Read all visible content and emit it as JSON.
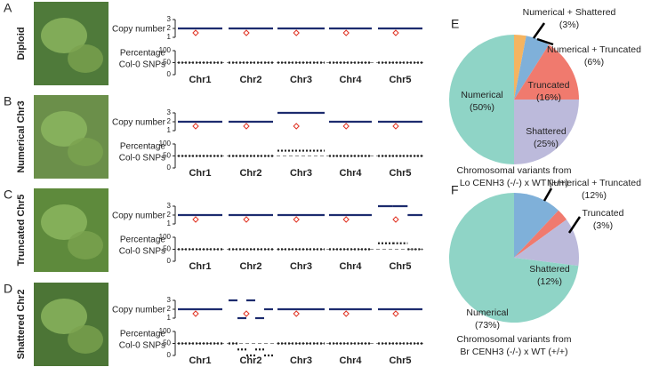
{
  "chart_data": [
    {
      "type": "pie",
      "panel": "E",
      "categories": [
        "Numerical + Shattered",
        "Numerical + Truncated",
        "Truncated",
        "Shattered",
        "Numerical"
      ],
      "values": [
        3,
        6,
        16,
        25,
        50
      ],
      "value_labels": [
        "(3%)",
        "(6%)",
        "(16%)",
        "(25%)",
        "(50%)"
      ],
      "colors": [
        "#f5b460",
        "#7fb0d9",
        "#f07a6e",
        "#bcbadb",
        "#8fd4c6"
      ],
      "caption": [
        "Chromosomal variants from",
        "Lo CENH3 (-/-) x WT (+/+)"
      ]
    },
    {
      "type": "pie",
      "panel": "F",
      "categories": [
        "Numerical + Truncated",
        "Truncated",
        "Shattered",
        "Numerical"
      ],
      "values": [
        12,
        3,
        12,
        73
      ],
      "value_labels": [
        "(12%)",
        "(3%)",
        "(12%)",
        "(73%)"
      ],
      "colors": [
        "#7fb0d9",
        "#f07a6e",
        "#bcbadb",
        "#8fd4c6"
      ],
      "caption": [
        "Chromosomal variants from",
        "Br CENH3 (-/-) x WT (+/+)"
      ]
    }
  ],
  "genome_panels": {
    "copy_label": "Copy number",
    "snp_label": [
      "Percentage",
      "Col-0 SNPs"
    ],
    "chromosomes": [
      "Chr1",
      "Chr2",
      "Chr3",
      "Chr4",
      "Chr5"
    ],
    "copy_ylim": [
      1,
      3
    ],
    "copy_yticks": [
      1,
      2,
      3
    ],
    "snp_ylim": [
      0,
      100
    ],
    "snp_yticks": [
      0,
      50,
      100
    ],
    "snp_reference": 50,
    "rows": [
      {
        "letter": "A",
        "label": "Diploid",
        "copy": [
          [
            2
          ],
          [
            2
          ],
          [
            2
          ],
          [
            2
          ],
          [
            2
          ]
        ],
        "snp": [
          [
            50
          ],
          [
            50
          ],
          [
            50
          ],
          [
            50
          ],
          [
            50
          ]
        ]
      },
      {
        "letter": "B",
        "label": "Numerical Chr3",
        "copy": [
          [
            2
          ],
          [
            2
          ],
          [
            3
          ],
          [
            2
          ],
          [
            2
          ]
        ],
        "snp": [
          [
            50
          ],
          [
            50
          ],
          [
            72
          ],
          [
            50
          ],
          [
            50
          ]
        ]
      },
      {
        "letter": "C",
        "label": "Truncated Chr5",
        "copy": [
          [
            2
          ],
          [
            2
          ],
          [
            2
          ],
          [
            2
          ],
          [
            3,
            3,
            2
          ]
        ],
        "snp": [
          [
            50
          ],
          [
            50
          ],
          [
            50
          ],
          [
            50
          ],
          [
            75,
            75,
            50
          ]
        ]
      },
      {
        "letter": "D",
        "label": "Shattered Chr2",
        "copy": [
          [
            2
          ],
          [
            3,
            1,
            3,
            1,
            2
          ],
          [
            2
          ],
          [
            2
          ],
          [
            2
          ]
        ],
        "snp": [
          [
            50
          ],
          [
            50,
            25,
            0,
            25,
            0
          ],
          [
            50
          ],
          [
            50
          ],
          [
            50
          ]
        ]
      }
    ]
  }
}
